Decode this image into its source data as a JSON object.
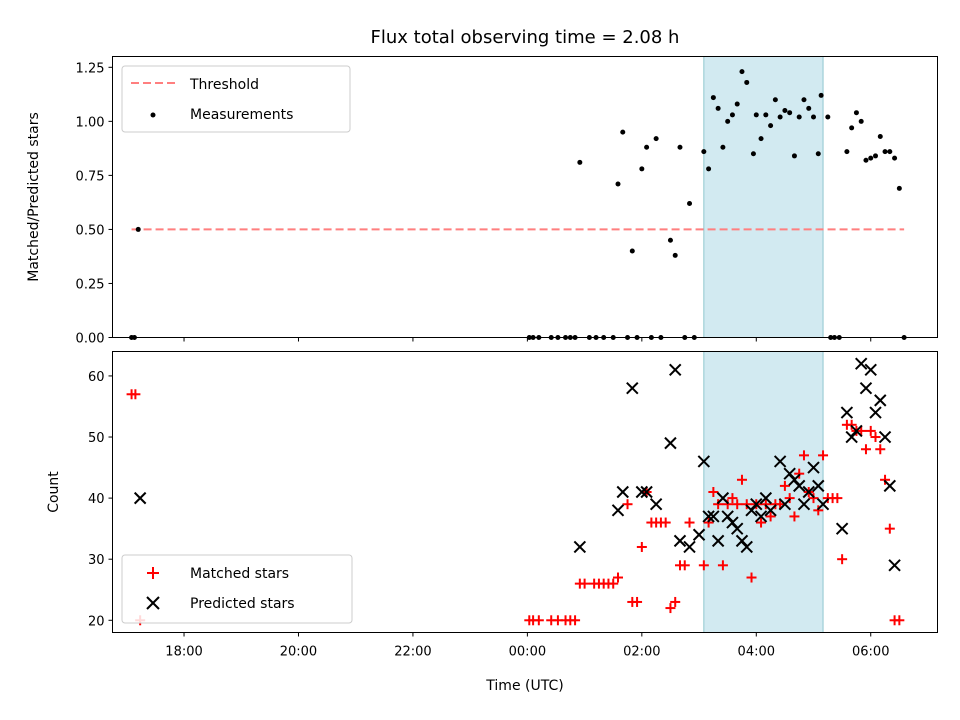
{
  "figure": {
    "title": "Flux total observing time = 2.08 h"
  },
  "chart_data": [
    {
      "type": "scatter",
      "title": "Flux total observing time = 2.08 h",
      "xlabel": "",
      "ylabel": "Matched/Predicted stars",
      "xlim": [
        "16:45",
        "07:10"
      ],
      "ylim": [
        0,
        1.3
      ],
      "yticks": [
        "0.00",
        "0.25",
        "0.50",
        "0.75",
        "1.00",
        "1.25"
      ],
      "grid": false,
      "legend_position": "upper left",
      "shaded_span": {
        "start": "03:05",
        "end": "05:10",
        "color": "#add8e6"
      },
      "threshold": {
        "name": "Threshold",
        "y": 0.5,
        "x_start": "17:05",
        "x_end": "06:35",
        "color": "#ff7f7f",
        "style": "dashed"
      },
      "series": [
        {
          "name": "Measurements",
          "color": "#000000",
          "marker": "dot",
          "points": [
            [
              "17:05",
              0.0
            ],
            [
              "17:08",
              0.0
            ],
            [
              "17:12",
              0.5
            ],
            [
              "00:02",
              0.0
            ],
            [
              "00:06",
              0.0
            ],
            [
              "00:12",
              0.0
            ],
            [
              "00:25",
              0.0
            ],
            [
              "00:32",
              0.0
            ],
            [
              "00:40",
              0.0
            ],
            [
              "00:45",
              0.0
            ],
            [
              "00:50",
              0.0
            ],
            [
              "00:55",
              0.81
            ],
            [
              "01:05",
              0.0
            ],
            [
              "01:12",
              0.0
            ],
            [
              "01:20",
              0.0
            ],
            [
              "01:30",
              0.0
            ],
            [
              "01:35",
              0.71
            ],
            [
              "01:40",
              0.95
            ],
            [
              "01:45",
              0.0
            ],
            [
              "01:50",
              0.4
            ],
            [
              "01:55",
              0.0
            ],
            [
              "02:00",
              0.78
            ],
            [
              "02:05",
              0.88
            ],
            [
              "02:10",
              0.0
            ],
            [
              "02:15",
              0.92
            ],
            [
              "02:20",
              0.0
            ],
            [
              "02:30",
              0.45
            ],
            [
              "02:35",
              0.38
            ],
            [
              "02:40",
              0.88
            ],
            [
              "02:45",
              0.0
            ],
            [
              "02:50",
              0.62
            ],
            [
              "02:55",
              0.0
            ],
            [
              "03:05",
              0.86
            ],
            [
              "03:10",
              0.78
            ],
            [
              "03:15",
              1.11
            ],
            [
              "03:20",
              1.06
            ],
            [
              "03:25",
              0.88
            ],
            [
              "03:30",
              1.0
            ],
            [
              "03:35",
              1.03
            ],
            [
              "03:40",
              1.08
            ],
            [
              "03:45",
              1.23
            ],
            [
              "03:50",
              1.18
            ],
            [
              "03:57",
              0.85
            ],
            [
              "04:00",
              1.03
            ],
            [
              "04:05",
              0.92
            ],
            [
              "04:10",
              1.03
            ],
            [
              "04:15",
              0.98
            ],
            [
              "04:20",
              1.1
            ],
            [
              "04:25",
              1.02
            ],
            [
              "04:30",
              1.05
            ],
            [
              "04:35",
              1.04
            ],
            [
              "04:40",
              0.84
            ],
            [
              "04:45",
              1.02
            ],
            [
              "04:50",
              1.1
            ],
            [
              "04:55",
              1.06
            ],
            [
              "05:00",
              1.02
            ],
            [
              "05:05",
              0.85
            ],
            [
              "05:08",
              1.12
            ],
            [
              "05:15",
              1.02
            ],
            [
              "05:18",
              0.0
            ],
            [
              "05:22",
              0.0
            ],
            [
              "05:27",
              0.0
            ],
            [
              "05:35",
              0.86
            ],
            [
              "05:40",
              0.97
            ],
            [
              "05:45",
              1.04
            ],
            [
              "05:50",
              1.0
            ],
            [
              "05:55",
              0.82
            ],
            [
              "06:00",
              0.83
            ],
            [
              "06:05",
              0.84
            ],
            [
              "06:10",
              0.93
            ],
            [
              "06:15",
              0.86
            ],
            [
              "06:20",
              0.86
            ],
            [
              "06:25",
              0.83
            ],
            [
              "06:30",
              0.69
            ],
            [
              "06:35",
              0.0
            ]
          ]
        }
      ]
    },
    {
      "type": "scatter",
      "title": "",
      "xlabel": "Time (UTC)",
      "ylabel": "Count",
      "xlim": [
        "16:45",
        "07:10"
      ],
      "ylim": [
        18,
        64
      ],
      "yticks": [
        "20",
        "30",
        "40",
        "50",
        "60"
      ],
      "xticks": [
        "18:00",
        "20:00",
        "22:00",
        "00:00",
        "02:00",
        "04:00",
        "06:00"
      ],
      "grid": false,
      "legend_position": "lower left",
      "shaded_span": {
        "start": "03:05",
        "end": "05:10",
        "color": "#add8e6"
      },
      "series": [
        {
          "name": "Matched stars",
          "color": "#ff0000",
          "marker": "plus",
          "points": [
            [
              "17:05",
              57
            ],
            [
              "17:09",
              57
            ],
            [
              "17:14",
              20
            ],
            [
              "00:02",
              20
            ],
            [
              "00:06",
              20
            ],
            [
              "00:12",
              20
            ],
            [
              "00:25",
              20
            ],
            [
              "00:32",
              20
            ],
            [
              "00:40",
              20
            ],
            [
              "00:45",
              20
            ],
            [
              "00:50",
              20
            ],
            [
              "00:55",
              26
            ],
            [
              "01:00",
              26
            ],
            [
              "01:10",
              26
            ],
            [
              "01:15",
              26
            ],
            [
              "01:20",
              26
            ],
            [
              "01:25",
              26
            ],
            [
              "01:30",
              26
            ],
            [
              "01:35",
              27
            ],
            [
              "01:45",
              39
            ],
            [
              "01:50",
              23
            ],
            [
              "01:55",
              23
            ],
            [
              "02:00",
              32
            ],
            [
              "02:05",
              41
            ],
            [
              "02:10",
              36
            ],
            [
              "02:15",
              36
            ],
            [
              "02:20",
              36
            ],
            [
              "02:25",
              36
            ],
            [
              "02:30",
              22
            ],
            [
              "02:35",
              23
            ],
            [
              "02:40",
              29
            ],
            [
              "02:45",
              29
            ],
            [
              "02:50",
              36
            ],
            [
              "03:05",
              29
            ],
            [
              "03:10",
              36
            ],
            [
              "03:15",
              41
            ],
            [
              "03:20",
              39
            ],
            [
              "03:25",
              29
            ],
            [
              "03:30",
              39
            ],
            [
              "03:35",
              40
            ],
            [
              "03:40",
              39
            ],
            [
              "03:45",
              43
            ],
            [
              "03:50",
              39
            ],
            [
              "03:55",
              27
            ],
            [
              "04:00",
              39
            ],
            [
              "04:05",
              36
            ],
            [
              "04:10",
              39
            ],
            [
              "04:15",
              37
            ],
            [
              "04:20",
              39
            ],
            [
              "04:25",
              39
            ],
            [
              "04:30",
              42
            ],
            [
              "04:35",
              40
            ],
            [
              "04:40",
              37
            ],
            [
              "04:45",
              44
            ],
            [
              "04:50",
              47
            ],
            [
              "04:55",
              41
            ],
            [
              "05:00",
              40
            ],
            [
              "05:05",
              38
            ],
            [
              "05:10",
              47
            ],
            [
              "05:15",
              40
            ],
            [
              "05:20",
              40
            ],
            [
              "05:25",
              40
            ],
            [
              "05:30",
              30
            ],
            [
              "05:35",
              52
            ],
            [
              "05:40",
              52
            ],
            [
              "05:45",
              51
            ],
            [
              "05:50",
              51
            ],
            [
              "05:55",
              48
            ],
            [
              "06:00",
              51
            ],
            [
              "06:05",
              50
            ],
            [
              "06:10",
              48
            ],
            [
              "06:15",
              43
            ],
            [
              "06:20",
              35
            ],
            [
              "06:25",
              20
            ],
            [
              "06:30",
              20
            ]
          ]
        },
        {
          "name": "Predicted stars",
          "color": "#000000",
          "marker": "x",
          "points": [
            [
              "17:14",
              40
            ],
            [
              "00:55",
              32
            ],
            [
              "01:35",
              38
            ],
            [
              "01:40",
              41
            ],
            [
              "01:50",
              58
            ],
            [
              "02:00",
              41
            ],
            [
              "02:05",
              41
            ],
            [
              "02:15",
              39
            ],
            [
              "02:30",
              49
            ],
            [
              "02:35",
              61
            ],
            [
              "02:40",
              33
            ],
            [
              "02:50",
              32
            ],
            [
              "03:00",
              34
            ],
            [
              "03:05",
              46
            ],
            [
              "03:10",
              37
            ],
            [
              "03:15",
              37
            ],
            [
              "03:20",
              33
            ],
            [
              "03:25",
              40
            ],
            [
              "03:30",
              37
            ],
            [
              "03:35",
              36
            ],
            [
              "03:40",
              35
            ],
            [
              "03:45",
              33
            ],
            [
              "03:50",
              32
            ],
            [
              "03:55",
              38
            ],
            [
              "04:00",
              39
            ],
            [
              "04:05",
              37
            ],
            [
              "04:10",
              40
            ],
            [
              "04:15",
              38
            ],
            [
              "04:25",
              46
            ],
            [
              "04:30",
              39
            ],
            [
              "04:35",
              44
            ],
            [
              "04:40",
              43
            ],
            [
              "04:45",
              42
            ],
            [
              "04:50",
              39
            ],
            [
              "04:55",
              41
            ],
            [
              "05:00",
              45
            ],
            [
              "05:05",
              42
            ],
            [
              "05:10",
              39
            ],
            [
              "05:30",
              35
            ],
            [
              "05:35",
              54
            ],
            [
              "05:40",
              50
            ],
            [
              "05:45",
              51
            ],
            [
              "05:50",
              62
            ],
            [
              "05:55",
              58
            ],
            [
              "06:00",
              61
            ],
            [
              "06:05",
              54
            ],
            [
              "06:10",
              56
            ],
            [
              "06:15",
              50
            ],
            [
              "06:20",
              42
            ],
            [
              "06:25",
              29
            ]
          ]
        }
      ]
    }
  ]
}
